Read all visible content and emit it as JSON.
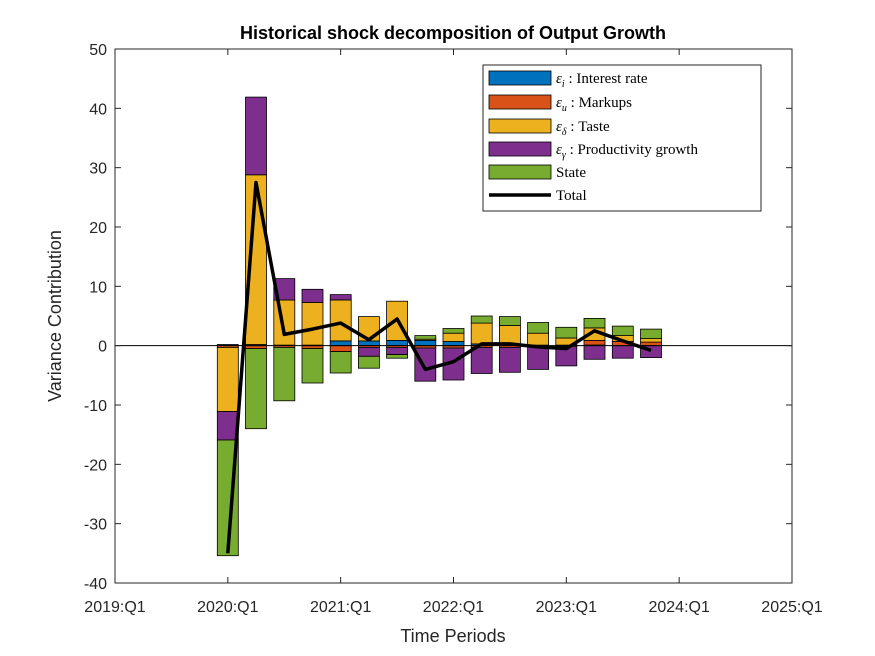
{
  "chart_data": {
    "type": "bar",
    "subtype": "stacked-with-line",
    "title": "Historical shock decomposition of Output Growth",
    "xlabel": "Time Periods",
    "ylabel": "Variance Contribution",
    "ylim": [
      -40,
      50
    ],
    "yticks": [
      "-40",
      "-30",
      "-20",
      "-10",
      "0",
      "10",
      "20",
      "30",
      "40",
      "50"
    ],
    "xlim": [
      2019.0,
      2025.0
    ],
    "xticks": [
      {
        "value": 2019.0,
        "label": "2019:Q1"
      },
      {
        "value": 2020.0,
        "label": "2020:Q1"
      },
      {
        "value": 2021.0,
        "label": "2021:Q1"
      },
      {
        "value": 2022.0,
        "label": "2022:Q1"
      },
      {
        "value": 2023.0,
        "label": "2023:Q1"
      },
      {
        "value": 2024.0,
        "label": "2024:Q1"
      },
      {
        "value": 2025.0,
        "label": "2025:Q1"
      }
    ],
    "legend_position": "top-right",
    "grid": false,
    "x": [
      2020.0,
      2020.25,
      2020.5,
      2020.75,
      2021.0,
      2021.25,
      2021.5,
      2021.75,
      2022.0,
      2022.25,
      2022.5,
      2022.75,
      2023.0,
      2023.25,
      2023.5,
      2023.75
    ],
    "series": [
      {
        "key": "interest",
        "legend_symbol": "ε",
        "legend_sub": "i",
        "legend_text": " : Interest rate",
        "color": "#0072BD",
        "values": [
          0.2,
          0.2,
          0.1,
          0.1,
          0.8,
          0.8,
          0.9,
          0.9,
          0.7,
          0.3,
          0.2,
          0.1,
          0.1,
          0.1,
          0.0,
          0.0
        ]
      },
      {
        "key": "markups",
        "legend_symbol": "ε",
        "legend_sub": "u",
        "legend_text": " : Markups",
        "color": "#D95319",
        "values": [
          -0.3,
          -0.5,
          -0.3,
          -0.5,
          -1.0,
          -0.3,
          -0.3,
          -0.4,
          -0.4,
          -0.3,
          -0.3,
          -0.2,
          -0.1,
          0.8,
          0.7,
          0.6
        ]
      },
      {
        "key": "taste",
        "legend_symbol": "ε",
        "legend_sub": "δ",
        "legend_text": " : Taste",
        "color": "#EDB120",
        "values": [
          -10.8,
          28.6,
          7.6,
          7.2,
          6.9,
          4.1,
          6.6,
          0.2,
          1.4,
          3.5,
          3.2,
          2.0,
          1.2,
          2.1,
          1.0,
          0.6
        ]
      },
      {
        "key": "productivity",
        "legend_symbol": "ε",
        "legend_sub": "γ",
        "legend_text": " : Productivity growth",
        "color": "#7E2F8E",
        "values": [
          -4.8,
          13.1,
          3.6,
          2.2,
          0.9,
          -1.5,
          -1.2,
          -5.6,
          -5.4,
          -4.4,
          -4.2,
          -3.8,
          -3.3,
          -2.3,
          -2.1,
          -2.0
        ]
      },
      {
        "key": "state",
        "legend_symbol": "",
        "legend_sub": "",
        "legend_text": "State",
        "color": "#77AC30",
        "values": [
          -19.5,
          -13.5,
          -9.0,
          -5.8,
          -3.6,
          -2.0,
          -0.6,
          0.6,
          0.8,
          1.2,
          1.5,
          1.8,
          1.8,
          1.6,
          1.6,
          1.6
        ]
      }
    ],
    "total": {
      "legend_text": "Total",
      "color": "#000000",
      "values": [
        -35.0,
        27.5,
        1.9,
        2.8,
        3.8,
        1.0,
        4.5,
        -4.0,
        -2.7,
        0.3,
        0.3,
        -0.2,
        -0.5,
        2.5,
        0.8,
        -0.8
      ]
    }
  }
}
